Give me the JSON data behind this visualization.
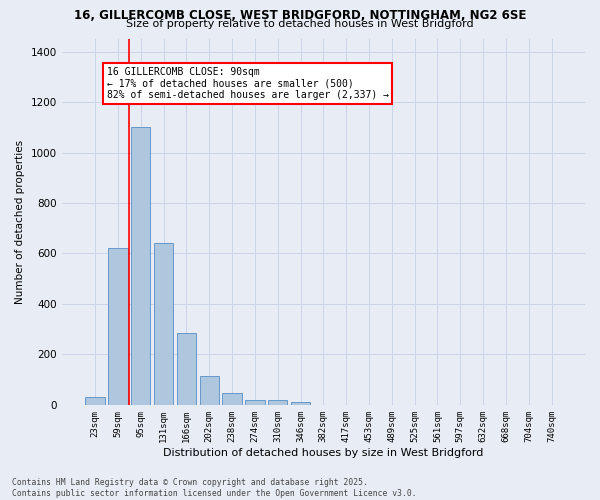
{
  "title1": "16, GILLERCOMB CLOSE, WEST BRIDGFORD, NOTTINGHAM, NG2 6SE",
  "title2": "Size of property relative to detached houses in West Bridgford",
  "xlabel": "Distribution of detached houses by size in West Bridgford",
  "ylabel": "Number of detached properties",
  "bin_labels": [
    "23sqm",
    "59sqm",
    "95sqm",
    "131sqm",
    "166sqm",
    "202sqm",
    "238sqm",
    "274sqm",
    "310sqm",
    "346sqm",
    "382sqm",
    "417sqm",
    "453sqm",
    "489sqm",
    "525sqm",
    "561sqm",
    "597sqm",
    "632sqm",
    "668sqm",
    "704sqm",
    "740sqm"
  ],
  "bar_values": [
    30,
    620,
    1100,
    640,
    285,
    115,
    48,
    20,
    20,
    12,
    0,
    0,
    0,
    0,
    0,
    0,
    0,
    0,
    0,
    0,
    0
  ],
  "bar_color": "#aec6de",
  "bar_edge_color": "#6699cc",
  "vline_color": "red",
  "annotation_title": "16 GILLERCOMB CLOSE: 90sqm",
  "annotation_line1": "← 17% of detached houses are smaller (500)",
  "annotation_line2": "82% of semi-detached houses are larger (2,337) →",
  "annotation_box_color": "white",
  "annotation_box_edge": "red",
  "ylim": [
    0,
    1450
  ],
  "yticks": [
    0,
    200,
    400,
    600,
    800,
    1000,
    1200,
    1400
  ],
  "grid_color": "#ccd5e8",
  "bg_color": "#e8edf5",
  "footer1": "Contains HM Land Registry data © Crown copyright and database right 2025.",
  "footer2": "Contains public sector information licensed under the Open Government Licence v3.0."
}
